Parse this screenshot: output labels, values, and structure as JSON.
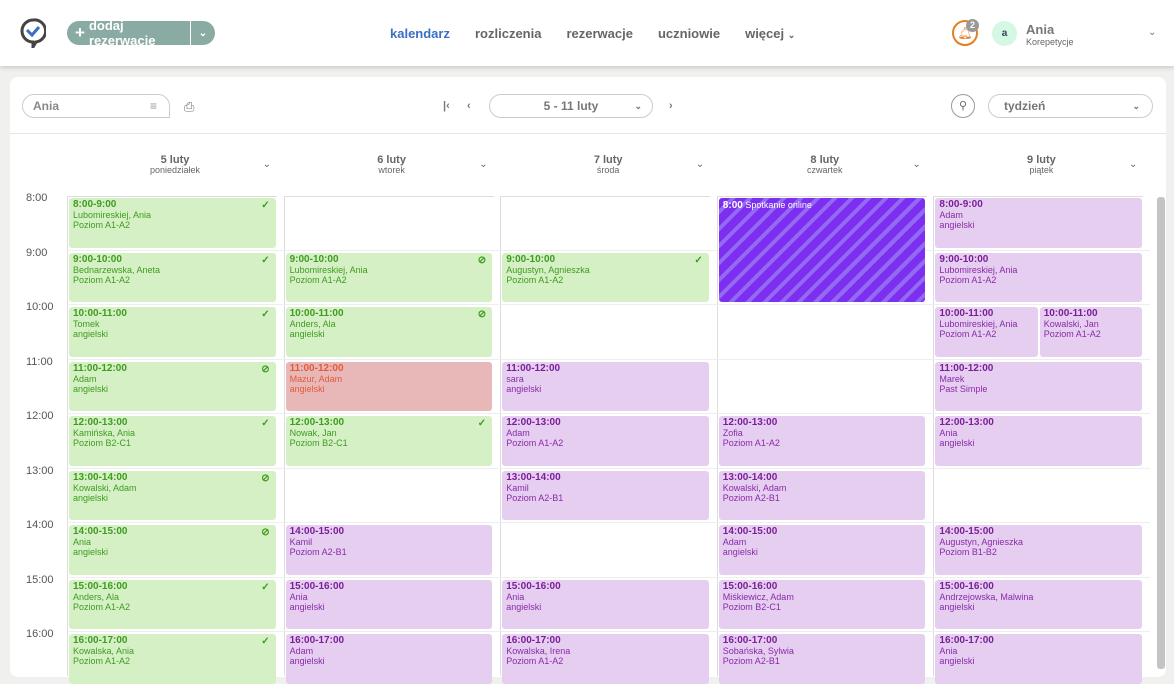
{
  "header": {
    "add_label": "dodaj rezerwację",
    "nav": [
      "kalendarz",
      "rozliczenia",
      "rezerwacje",
      "uczniowie",
      "więcej"
    ],
    "notif_count": "2",
    "avatar_letter": "a",
    "user_name": "Ania",
    "user_role": "Korepetycje"
  },
  "toolbar": {
    "filter_value": "Ania",
    "range": "5 - 11 luty",
    "view": "tydzień"
  },
  "days": [
    {
      "date": "5 luty",
      "weekday": "poniedziałek"
    },
    {
      "date": "6 luty",
      "weekday": "wtorek"
    },
    {
      "date": "7 luty",
      "weekday": "środa"
    },
    {
      "date": "8 luty",
      "weekday": "czwartek"
    },
    {
      "date": "9 luty",
      "weekday": "piątek"
    }
  ],
  "hours": [
    "8:00",
    "9:00",
    "10:00",
    "11:00",
    "12:00",
    "13:00",
    "14:00",
    "15:00",
    "16:00"
  ],
  "events": [
    {
      "day": 0,
      "start": 8,
      "time": "8:00-9:00",
      "name": "Lubomireskiej, Ania",
      "info": "Poziom A1-A2",
      "status": "paid",
      "icon": "check"
    },
    {
      "day": 0,
      "start": 9,
      "time": "9:00-10:00",
      "name": "Bednarzewska, Aneta",
      "info": "Poziom A1-A2",
      "status": "paid",
      "icon": "check"
    },
    {
      "day": 0,
      "start": 10,
      "time": "10:00-11:00",
      "name": "Tomek",
      "info": "angielski",
      "status": "paid",
      "icon": "check"
    },
    {
      "day": 0,
      "start": 11,
      "time": "11:00-12:00",
      "name": "Adam",
      "info": "angielski",
      "status": "paid",
      "icon": "unpaid"
    },
    {
      "day": 0,
      "start": 12,
      "time": "12:00-13:00",
      "name": "Kamińska, Ania",
      "info": "Poziom B2-C1",
      "status": "paid",
      "icon": "check"
    },
    {
      "day": 0,
      "start": 13,
      "time": "13:00-14:00",
      "name": "Kowalski, Adam",
      "info": "angielski",
      "status": "paid",
      "icon": "unpaid"
    },
    {
      "day": 0,
      "start": 14,
      "time": "14:00-15:00",
      "name": "Ania",
      "info": "angielski",
      "status": "paid",
      "icon": "unpaid"
    },
    {
      "day": 0,
      "start": 15,
      "time": "15:00-16:00",
      "name": "Anders, Ala",
      "info": "Poziom A1-A2",
      "status": "paid",
      "icon": "check"
    },
    {
      "day": 0,
      "start": 16,
      "time": "16:00-17:00",
      "name": "Kowalska, Ania",
      "info": "Poziom A1-A2",
      "status": "paid",
      "icon": "check"
    },
    {
      "day": 1,
      "start": 9,
      "time": "9:00-10:00",
      "name": "Lubomireskiej, Ania",
      "info": "Poziom A1-A2",
      "status": "paid",
      "icon": "unpaid"
    },
    {
      "day": 1,
      "start": 10,
      "time": "10:00-11:00",
      "name": "Anders, Ala",
      "info": "angielski",
      "status": "paid",
      "icon": "unpaid"
    },
    {
      "day": 1,
      "start": 11,
      "time": "11:00-12:00",
      "name": "Mazur, Adam",
      "info": "angielski",
      "status": "cancel"
    },
    {
      "day": 1,
      "start": 12,
      "time": "12:00-13:00",
      "name": "Nowak, Jan",
      "info": "Poziom B2-C1",
      "status": "paid",
      "icon": "check"
    },
    {
      "day": 1,
      "start": 14,
      "time": "14:00-15:00",
      "name": "Kamil",
      "info": "Poziom A2-B1",
      "status": "def"
    },
    {
      "day": 1,
      "start": 15,
      "time": "15:00-16:00",
      "name": "Ania",
      "info": "angielski",
      "status": "def"
    },
    {
      "day": 1,
      "start": 16,
      "time": "16:00-17:00",
      "name": "Adam",
      "info": "angielski",
      "status": "def"
    },
    {
      "day": 2,
      "start": 9,
      "time": "9:00-10:00",
      "name": "Augustyn, Agnieszka",
      "info": "Poziom A1-A2",
      "status": "paid",
      "icon": "check"
    },
    {
      "day": 2,
      "start": 11,
      "time": "11:00-12:00",
      "name": "sara",
      "info": "angielski",
      "status": "def"
    },
    {
      "day": 2,
      "start": 12,
      "time": "12:00-13:00",
      "name": "Adam",
      "info": "Poziom A1-A2",
      "status": "def"
    },
    {
      "day": 2,
      "start": 13,
      "time": "13:00-14:00",
      "name": "Kamil",
      "info": "Poziom A2-B1",
      "status": "def"
    },
    {
      "day": 2,
      "start": 15,
      "time": "15:00-16:00",
      "name": "Ania",
      "info": "angielski",
      "status": "def"
    },
    {
      "day": 2,
      "start": 16,
      "time": "16:00-17:00",
      "name": "Kowalska, Irena",
      "info": "Poziom A1-A2",
      "status": "def"
    },
    {
      "day": 3,
      "start": 8,
      "duration": 2,
      "time": "8:00",
      "name": "Spotkanie online",
      "status": "blocked"
    },
    {
      "day": 3,
      "start": 12,
      "time": "12:00-13:00",
      "name": "Zofia",
      "info": "Poziom A1-A2",
      "status": "def"
    },
    {
      "day": 3,
      "start": 13,
      "time": "13:00-14:00",
      "name": "Kowalski, Adam",
      "info": "Poziom A2-B1",
      "status": "def"
    },
    {
      "day": 3,
      "start": 14,
      "time": "14:00-15:00",
      "name": "Adam",
      "info": "angielski",
      "status": "def"
    },
    {
      "day": 3,
      "start": 15,
      "time": "15:00-16:00",
      "name": "Miśkiewicz, Adam",
      "info": "Poziom B2-C1",
      "status": "def"
    },
    {
      "day": 3,
      "start": 16,
      "time": "16:00-17:00",
      "name": "Sobańska, Sylwia",
      "info": "Poziom A2-B1",
      "status": "def"
    },
    {
      "day": 4,
      "start": 8,
      "time": "8:00-9:00",
      "name": "Adam",
      "info": "angielski",
      "status": "def"
    },
    {
      "day": 4,
      "start": 9,
      "time": "9:00-10:00",
      "name": "Lubomireskiej, Ania",
      "info": "Poziom A1-A2",
      "status": "def"
    },
    {
      "day": 4,
      "start": 10,
      "half": 0,
      "time": "10:00-11:00",
      "name": "Lubomireskiej, Ania",
      "info": "Poziom A1-A2",
      "status": "def"
    },
    {
      "day": 4,
      "start": 10,
      "half": 1,
      "time": "10:00-11:00",
      "name": "Kowalski, Jan",
      "info": "Poziom A1-A2",
      "status": "def"
    },
    {
      "day": 4,
      "start": 11,
      "time": "11:00-12:00",
      "name": "Marek",
      "info": "Past Simple",
      "status": "def"
    },
    {
      "day": 4,
      "start": 12,
      "time": "12:00-13:00",
      "name": "Ania",
      "info": "angielski",
      "status": "def"
    },
    {
      "day": 4,
      "start": 14,
      "time": "14:00-15:00",
      "name": "Augustyn, Agnieszka",
      "info": "Poziom B1-B2",
      "status": "def"
    },
    {
      "day": 4,
      "start": 15,
      "time": "15:00-16:00",
      "name": "Andrzejowska, Malwina",
      "info": "angielski",
      "status": "def"
    },
    {
      "day": 4,
      "start": 16,
      "time": "16:00-17:00",
      "name": "Ania",
      "info": "angielski",
      "status": "def"
    }
  ]
}
